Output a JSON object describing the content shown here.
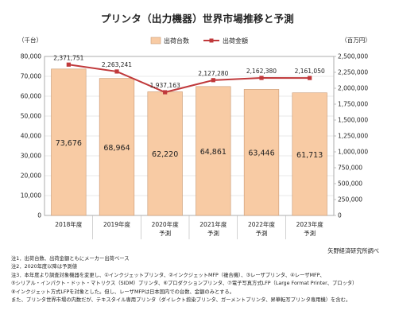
{
  "title": "プリンタ（出力機器）世界市場推移と予測",
  "chart_data": {
    "type": "bar+line",
    "title": "プリンタ（出力機器）世界市場推移と予測",
    "categories": [
      "2018年度",
      "2019年度",
      "2020年度",
      "2021年度",
      "2022年度",
      "2023年度"
    ],
    "category_sublabels": [
      "",
      "",
      "予測",
      "予測",
      "予測",
      "予測"
    ],
    "left_axis": {
      "unit": "（千台）",
      "min": 0,
      "max": 80000,
      "step": 10000,
      "ticks": [
        "0",
        "10,000",
        "20,000",
        "30,000",
        "40,000",
        "50,000",
        "60,000",
        "70,000",
        "80,000"
      ]
    },
    "right_axis": {
      "unit": "（百万円）",
      "min": 0,
      "max": 2500000,
      "step": 250000,
      "ticks": [
        "0",
        "250,000",
        "500,000",
        "750,000",
        "1,000,000",
        "1,250,000",
        "1,500,000",
        "1,750,000",
        "2,000,000",
        "2,250,000",
        "2,500,000"
      ]
    },
    "series": [
      {
        "name": "出荷台数",
        "type": "bar",
        "axis": "left",
        "color": "#f8cba4",
        "stroke": "#c99a74",
        "values": [
          73676,
          68964,
          62220,
          64861,
          63446,
          61713
        ],
        "labels": [
          "73,676",
          "68,964",
          "62,220",
          "64,861",
          "63,446",
          "61,713"
        ]
      },
      {
        "name": "出荷金額",
        "type": "line",
        "axis": "right",
        "color": "#c0393b",
        "values": [
          2371751,
          2263241,
          1937163,
          2127280,
          2162380,
          2161050
        ],
        "labels": [
          "2,371,751",
          "2,263,241",
          "1,937,163",
          "2,127,280",
          "2,162,380",
          "2,161,050"
        ]
      }
    ],
    "legend_position": "top-center",
    "grid": true
  },
  "source": "矢野経済研究所調べ",
  "notes": [
    "注1．出荷台数、出荷金額ともにメーカー出荷ベース",
    "注2．2020年度以降は予測値",
    "注3．本年度より調査対象機器を変更し、①インクジェットプリンタ、②インクジェットMFP（複合機）、③レーザプリンタ、④レーザMFP、",
    "⑤シリアル・インパクト・ドット・マトリクス（SIDM）プリンタ、⑥プロダクションプリンタ、⑦電子写真方式LFP（Large Format Printer、プロッタ）",
    "⑧インクジェット方式LFPを対象とした。但し、レーザMFPは日本国内での台数、金額のみとする。",
    "また、プリンタ世界市場の内数だが、テキスタイル専用プリンタ（ダイレクト捺染プリンタ、ガーメントプリンタ、昇華転写プリンタ専用機）を含む。"
  ]
}
